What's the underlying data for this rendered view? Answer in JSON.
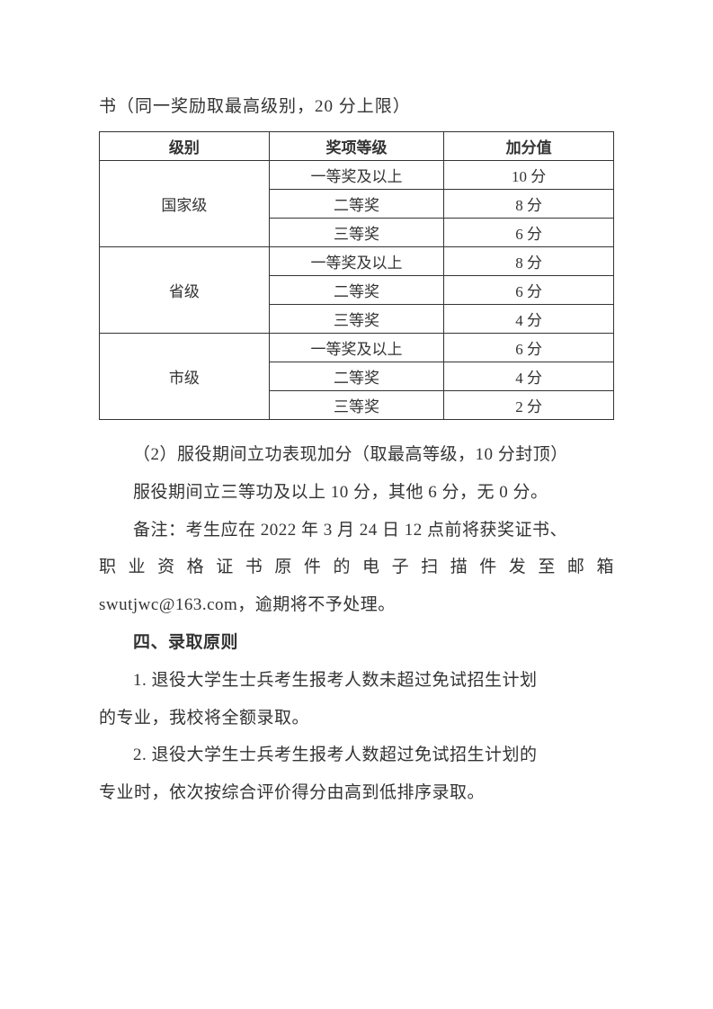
{
  "intro": "书（同一奖励取最高级别，20 分上限）",
  "table": {
    "headers": [
      "级别",
      "奖项等级",
      "加分值"
    ],
    "groups": [
      {
        "level": "国家级",
        "rows": [
          {
            "grade": "一等奖及以上",
            "score": "10 分"
          },
          {
            "grade": "二等奖",
            "score": "8 分"
          },
          {
            "grade": "三等奖",
            "score": "6 分"
          }
        ]
      },
      {
        "level": "省级",
        "rows": [
          {
            "grade": "一等奖及以上",
            "score": "8 分"
          },
          {
            "grade": "二等奖",
            "score": "6 分"
          },
          {
            "grade": "三等奖",
            "score": "4 分"
          }
        ]
      },
      {
        "level": "市级",
        "rows": [
          {
            "grade": "一等奖及以上",
            "score": "6 分"
          },
          {
            "grade": "二等奖",
            "score": "4 分"
          },
          {
            "grade": "三等奖",
            "score": "2 分"
          }
        ]
      }
    ]
  },
  "para1": "（2）服役期间立功表现加分（取最高等级，10 分封顶）",
  "para2": "服役期间立三等功及以上 10 分，其他 6 分，无 0 分。",
  "para3a": "备注：考生应在 2022 年 3 月 24 日 12 点前将获奖证书、",
  "para3b": "职业资格证书原件的电子扫描件发至邮箱",
  "para3c": "swutjwc@163.com，逾期将不予处理。",
  "heading": "四、录取原则",
  "para4a": "1. 退役大学生士兵考生报考人数未超过免试招生计划",
  "para4b": "的专业，我校将全额录取。",
  "para5a": "2. 退役大学生士兵考生报考人数超过免试招生计划的",
  "para5b": "专业时，依次按综合评价得分由高到低排序录取。"
}
